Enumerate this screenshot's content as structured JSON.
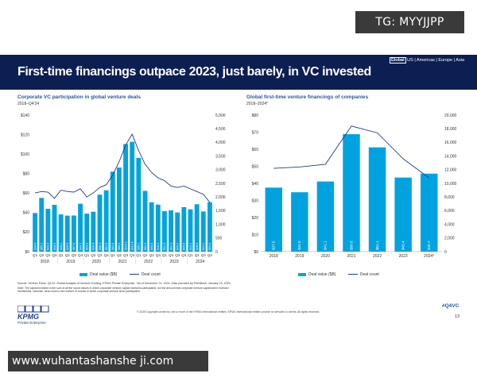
{
  "watermarks": {
    "top": "TG: MYYJJPP",
    "bottom": "www.wuhantashanshe ji.com"
  },
  "banner": {
    "title": "First-time financings outpace 2023, just barely, in VC invested",
    "nav": {
      "active": "Global",
      "others": "US | Americas | Europe | Asia"
    }
  },
  "footer": {
    "source": "Source: Venture Pulse, Q4'24, Global Analysis of Venture Funding, KPMG Private Enterprise. *As of December 31, 2024. Data provided by PitchBook, January 15, 2025.",
    "note": "Note: The capital invested is the sum of all the round values in which corporate venture capital investors participated, not the amount that corporate venture capital arms invested themselves. Likewise, deal count is the number of rounds in which corporate venture firms participated.",
    "copyright": "© 2025 Copyright owned by one or more of the KPMG International entities. KPMG International entities provide no services to clients. All rights reserved.",
    "logo": "KPMG",
    "logo_sub": "Private Enterprise",
    "hashtag": "#Q4VC",
    "page": "13"
  },
  "chart_data": [
    {
      "type": "bar",
      "title": "Corporate VC participation in global venture deals",
      "subtitle": "2018–Q4'24",
      "quarters": [
        "Q1",
        "Q2",
        "Q3",
        "Q4",
        "Q1",
        "Q2",
        "Q3",
        "Q4",
        "Q1",
        "Q2",
        "Q3",
        "Q4",
        "Q1",
        "Q2",
        "Q3",
        "Q4",
        "Q1",
        "Q2",
        "Q3",
        "Q4",
        "Q1",
        "Q2",
        "Q3",
        "Q4",
        "Q1",
        "Q2",
        "Q3",
        "Q4"
      ],
      "years": [
        "2018",
        "2019",
        "2020",
        "2021",
        "2022",
        "2023",
        "2024"
      ],
      "series": [
        {
          "name": "Deal value ($B)",
          "axis": "left",
          "values": [
            39.6,
            55.1,
            43.9,
            48.0,
            38.2,
            36.9,
            37.0,
            49.1,
            39.0,
            40.9,
            58.4,
            62.9,
            82.0,
            86.2,
            110.3,
            112.6,
            96.1,
            62.3,
            50.6,
            48.2,
            41.5,
            42.3,
            40.2,
            45.6,
            43.4,
            48.6,
            41.2,
            50.6
          ],
          "labels": [
            "$39.6",
            "$55.1",
            "$43.9",
            "$48.0",
            "$38.2",
            "$36.9",
            "$37.0",
            "$49.1",
            "$39.0",
            "$40.9",
            "$58.4",
            "$62.9",
            "$82.0",
            "$86.2",
            "$110.3",
            "$112.6",
            "$96.1",
            "$62.3",
            "$50.6",
            "$48.2",
            "$41.5",
            "$42.3",
            "$40.2",
            "$45.6",
            "$43.4",
            "$48.6",
            "$41.2",
            "$50.6"
          ]
        },
        {
          "name": "Deal count",
          "axis": "right",
          "values": [
            2150,
            2200,
            2180,
            1950,
            2250,
            2200,
            2180,
            2300,
            2000,
            2150,
            2350,
            2450,
            2800,
            3300,
            3900,
            4300,
            3700,
            3200,
            2900,
            2700,
            2600,
            2400,
            2350,
            2400,
            2300,
            2200,
            2100,
            1800
          ]
        }
      ],
      "ylim_left": [
        0,
        140
      ],
      "yticks_left": [
        "$0",
        "$20",
        "$40",
        "$60",
        "$80",
        "$100",
        "$120",
        "$140"
      ],
      "ylim_right": [
        0,
        5000
      ],
      "yticks_right": [
        "0",
        "500",
        "1,000",
        "1,500",
        "2,000",
        "2,500",
        "3,000",
        "3,500",
        "4,000",
        "4,500",
        "5,000"
      ],
      "legend": [
        "Deal value ($B)",
        "Deal count"
      ]
    },
    {
      "type": "bar",
      "title": "Global first-time venture financings of companies",
      "subtitle": "2018–2024*",
      "categories": [
        "2018",
        "2019",
        "2020",
        "2021",
        "2022",
        "2023",
        "2024*"
      ],
      "series": [
        {
          "name": "Deal value ($B)",
          "axis": "left",
          "values": [
            37.5,
            34.8,
            41.1,
            68.8,
            61.1,
            43.4,
            45.7
          ],
          "labels": [
            "$37.5",
            "$34.8",
            "$41.1",
            "$68.8",
            "$61.1",
            "$43.4",
            "$45.7"
          ]
        },
        {
          "name": "Deal count",
          "axis": "right",
          "values": [
            12200,
            12400,
            12800,
            18400,
            17400,
            13600,
            10800
          ]
        }
      ],
      "ylim_left": [
        0,
        80
      ],
      "yticks_left": [
        "$0",
        "$10",
        "$20",
        "$30",
        "$40",
        "$50",
        "$60",
        "$70",
        "$80"
      ],
      "ylim_right": [
        0,
        20000
      ],
      "yticks_right": [
        "0",
        "2,000",
        "4,000",
        "6,000",
        "8,000",
        "10,000",
        "12,000",
        "14,000",
        "16,000",
        "18,000",
        "20,000"
      ],
      "legend": [
        "Deal value ($B)",
        "Deal count"
      ]
    }
  ],
  "colors": {
    "bar": "#00a3e0",
    "line": "#1f3c88",
    "banner": "#0c1f53",
    "title": "#1f5aa8"
  }
}
